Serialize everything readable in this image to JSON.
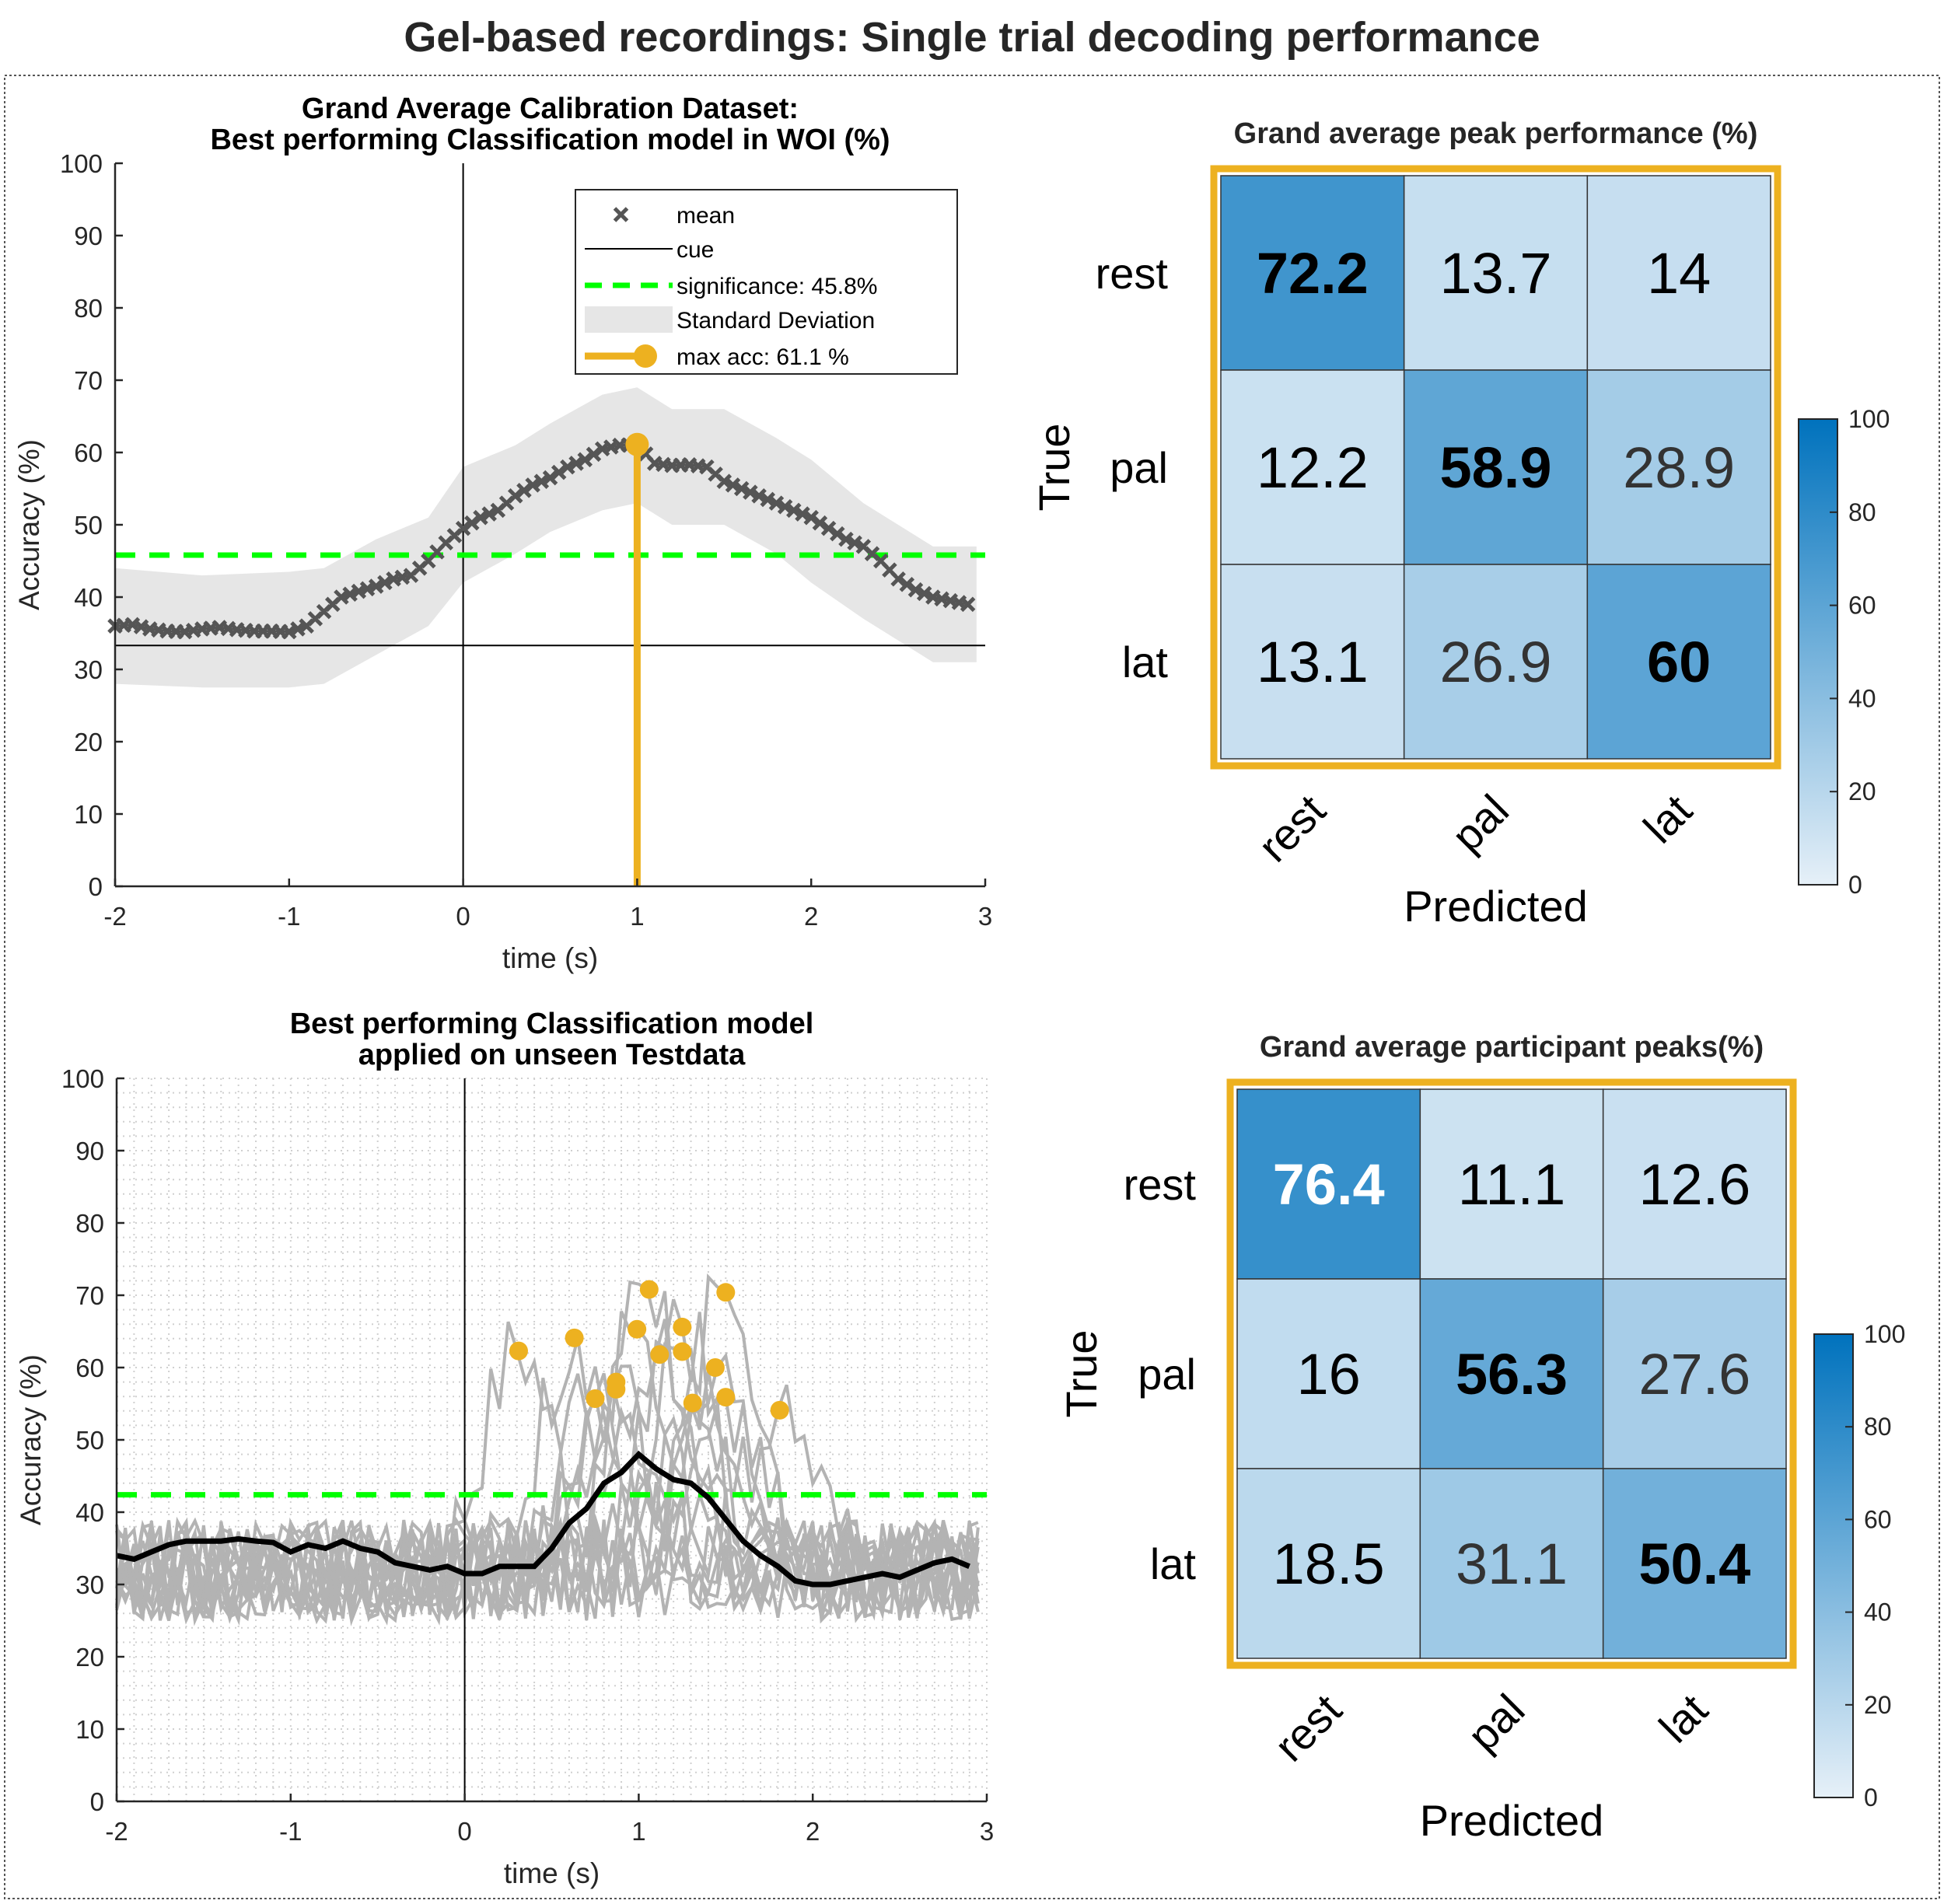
{
  "figure_title": "Gel-based recordings: Single trial decoding performance",
  "colors": {
    "accent": "#EDB120",
    "significance": "#00FF00",
    "mean": "#555555",
    "participants": "#B3B3B3",
    "band": "#E6E6E6",
    "cmap_low": "#E6F0F8",
    "cmap_high": "#0072BD"
  },
  "chart_data": [
    {
      "type": "line",
      "title_lines": [
        "Grand Average Calibration Dataset:",
        "Best performing Classification model in WOI (%)"
      ],
      "xlabel": "time (s)",
      "ylabel": "Accuracy (%)",
      "xlim": [
        -2,
        3
      ],
      "ylim": [
        0,
        100
      ],
      "xticks": [
        "-2",
        "-1",
        "0",
        "1",
        "2",
        "3"
      ],
      "yticks": [
        "0",
        "10",
        "20",
        "30",
        "40",
        "50",
        "60",
        "70",
        "80",
        "90",
        "100"
      ],
      "grid": false,
      "cue_x": 0,
      "chance_y": 33.3,
      "significance": 45.8,
      "max_acc": {
        "x": 1.0,
        "y": 61.1
      },
      "mean": {
        "x_start": -2,
        "x_step": 0.1,
        "y": [
          36,
          36.2,
          35.6,
          35.3,
          35.2,
          35.6,
          35.8,
          35.5,
          35.3,
          35.3,
          35.2,
          36,
          38,
          40,
          40.8,
          41.5,
          42.5,
          43,
          45,
          47.5,
          49.5,
          51,
          52,
          54,
          55.5,
          56.5,
          58,
          59,
          60.5,
          61,
          61.1,
          58.5,
          58.2,
          58.3,
          58,
          56,
          55,
          54,
          53,
          52,
          51,
          49.5,
          48,
          47,
          45,
          42.5,
          41,
          40,
          39.5,
          39
        ]
      },
      "std_band": {
        "x": [
          -2,
          -1.5,
          -1,
          -0.8,
          -0.5,
          -0.2,
          0,
          0.3,
          0.5,
          0.8,
          1,
          1.2,
          1.5,
          1.8,
          2,
          2.3,
          2.5,
          2.7,
          2.95
        ],
        "upper": [
          44,
          43,
          43.5,
          44,
          48,
          51,
          58,
          61,
          64,
          68,
          69,
          66,
          66,
          62,
          59,
          53,
          50,
          47,
          47
        ],
        "lower": [
          28,
          27.5,
          27.5,
          28,
          32,
          36,
          42,
          46,
          49,
          52,
          53,
          50,
          50,
          46,
          42,
          37,
          34,
          31,
          31
        ]
      },
      "legend": {
        "position": "top-right",
        "entries": [
          "mean",
          "cue",
          "significance: 45.8%",
          "Standard Deviation",
          "max acc: 61.1 %"
        ]
      }
    },
    {
      "type": "line",
      "title_lines": [
        "Best performing Classification model",
        "applied on unseen Testdata"
      ],
      "xlabel": "time (s)",
      "ylabel": "Accuracy (%)",
      "xlim": [
        -2,
        3
      ],
      "ylim": [
        0,
        100
      ],
      "xticks": [
        "-2",
        "-1",
        "0",
        "1",
        "2",
        "3"
      ],
      "yticks": [
        "0",
        "10",
        "20",
        "30",
        "40",
        "50",
        "60",
        "70",
        "80",
        "90",
        "100"
      ],
      "grid": true,
      "cue_x": 0,
      "significance": 42.4,
      "mean": {
        "x_start": -2,
        "x_step": 0.1,
        "y": [
          34,
          33.5,
          34.5,
          35.5,
          36,
          36,
          36,
          36.3,
          36,
          35.8,
          34.5,
          35.5,
          35,
          36,
          35,
          34.5,
          33,
          32.5,
          32,
          32.5,
          31.5,
          31.5,
          32.5,
          32.5,
          32.5,
          35,
          38.5,
          40.5,
          44,
          45.5,
          48,
          46,
          44.5,
          44,
          42,
          39,
          36,
          34,
          32.5,
          30.5,
          30,
          30,
          30.5,
          31,
          31.5,
          31,
          32,
          33,
          33.5,
          32.5
        ]
      },
      "participant_peaks": [
        {
          "x": 0.31,
          "y": 62.3
        },
        {
          "x": 0.63,
          "y": 64.1
        },
        {
          "x": 0.75,
          "y": 55.7
        },
        {
          "x": 0.87,
          "y": 58.0
        },
        {
          "x": 0.87,
          "y": 57.0
        },
        {
          "x": 0.99,
          "y": 65.3
        },
        {
          "x": 1.06,
          "y": 70.8
        },
        {
          "x": 1.12,
          "y": 61.8
        },
        {
          "x": 1.25,
          "y": 65.6
        },
        {
          "x": 1.25,
          "y": 62.2
        },
        {
          "x": 1.31,
          "y": 55.1
        },
        {
          "x": 1.44,
          "y": 60.0
        },
        {
          "x": 1.5,
          "y": 70.4
        },
        {
          "x": 1.5,
          "y": 55.9
        },
        {
          "x": 1.81,
          "y": 54.1
        }
      ]
    },
    {
      "type": "heatmap",
      "title": "Grand average peak performance (%)",
      "rows": [
        "rest",
        "pal",
        "lat"
      ],
      "cols": [
        "rest",
        "pal",
        "lat"
      ],
      "ylabel": "True",
      "xlabel": "Predicted",
      "values": [
        [
          72.2,
          13.7,
          14
        ],
        [
          12.2,
          58.9,
          28.9
        ],
        [
          13.1,
          26.9,
          60
        ]
      ],
      "colorbar": {
        "range": [
          0,
          100
        ],
        "ticks": [
          "0",
          "20",
          "40",
          "60",
          "80",
          "100"
        ]
      }
    },
    {
      "type": "heatmap",
      "title": "Grand average participant peaks(%)",
      "rows": [
        "rest",
        "pal",
        "lat"
      ],
      "cols": [
        "rest",
        "pal",
        "lat"
      ],
      "ylabel": "True",
      "xlabel": "Predicted",
      "values": [
        [
          76.4,
          11.1,
          12.6
        ],
        [
          16,
          56.3,
          27.6
        ],
        [
          18.5,
          31.1,
          50.4
        ]
      ],
      "colorbar": {
        "range": [
          0,
          100
        ],
        "ticks": [
          "0",
          "20",
          "40",
          "60",
          "80",
          "100"
        ]
      }
    }
  ]
}
